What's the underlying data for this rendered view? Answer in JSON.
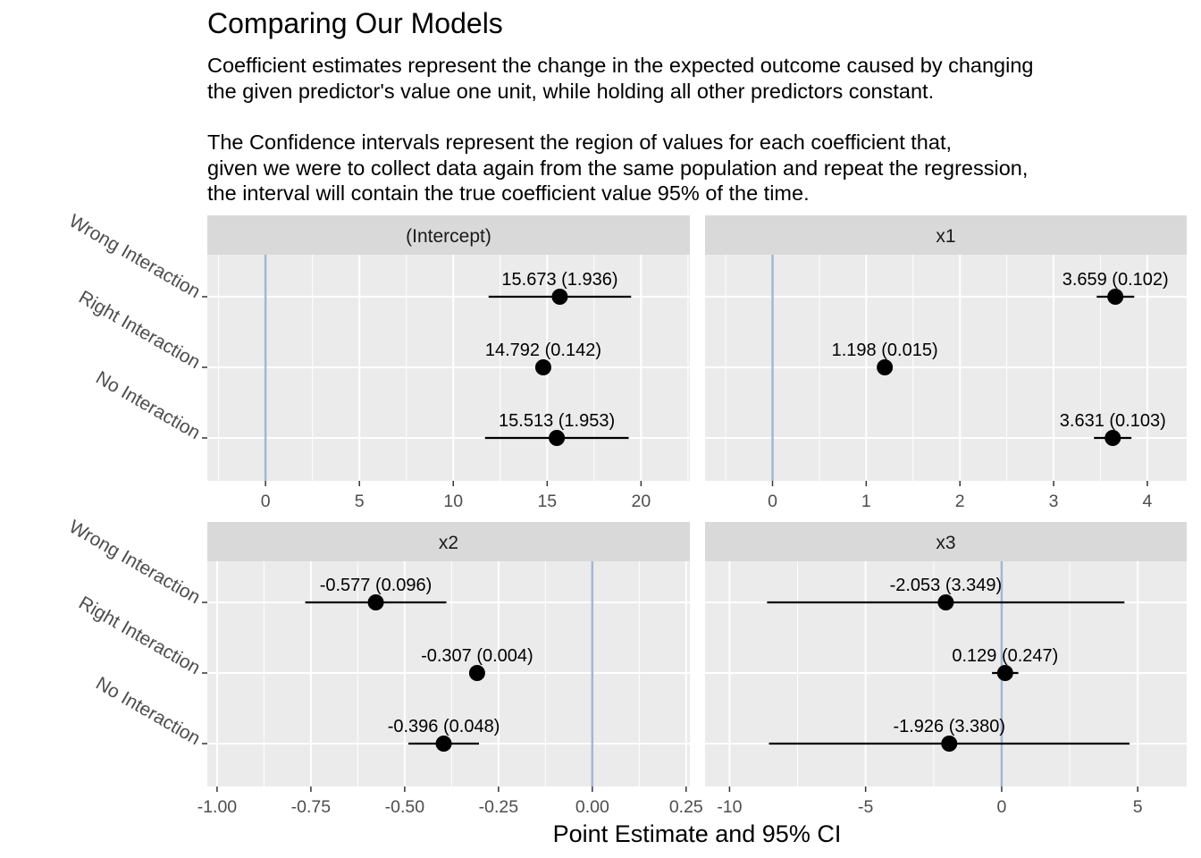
{
  "chart_data": {
    "type": "scatter",
    "title": "Comparing Our Models",
    "subtitle": [
      "Coefficient estimates represent the change in the expected outcome caused by changing",
      "the given predictor's value one unit, while holding all other predictors constant.",
      "The Confidence intervals represent the region of values for each coefficient that,",
      "given we were to collect data again from the same population and repeat the regression,",
      "the interval will contain the true coefficient value 95% of the time."
    ],
    "xlabel": "Point Estimate and 95% CI",
    "ylabel": "",
    "categories": [
      "Wrong Interaction",
      "Right Interaction",
      "No Interaction"
    ],
    "reference_line": 0,
    "reference_color": "#a2b7d6",
    "grid": true,
    "panels": [
      {
        "facet": "(Intercept)",
        "xlim": [
          -3.1,
          22.6
        ],
        "ticks": [
          0,
          5,
          10,
          15,
          20
        ],
        "tick_labels": [
          "0",
          "5",
          "10",
          "15",
          "20"
        ],
        "points": [
          {
            "model": "Wrong Interaction",
            "estimate": 15.673,
            "lower": 11.88,
            "upper": 19.47,
            "label": "15.673 (1.936)"
          },
          {
            "model": "Right Interaction",
            "estimate": 14.792,
            "lower": 14.51,
            "upper": 15.07,
            "label": "14.792 (0.142)"
          },
          {
            "model": "No Interaction",
            "estimate": 15.513,
            "lower": 11.69,
            "upper": 19.34,
            "label": "15.513 (1.953)"
          }
        ]
      },
      {
        "facet": "x1",
        "xlim": [
          -0.72,
          4.42
        ],
        "ticks": [
          0,
          1,
          2,
          3,
          4
        ],
        "tick_labels": [
          "0",
          "1",
          "2",
          "3",
          "4"
        ],
        "points": [
          {
            "model": "Wrong Interaction",
            "estimate": 3.659,
            "lower": 3.46,
            "upper": 3.86,
            "label": "3.659 (0.102)"
          },
          {
            "model": "Right Interaction",
            "estimate": 1.198,
            "lower": 1.169,
            "upper": 1.227,
            "label": "1.198 (0.015)"
          },
          {
            "model": "No Interaction",
            "estimate": 3.631,
            "lower": 3.43,
            "upper": 3.83,
            "label": "3.631 (0.103)"
          }
        ]
      },
      {
        "facet": "x2",
        "xlim": [
          -1.026,
          0.26
        ],
        "ticks": [
          -1.0,
          -0.75,
          -0.5,
          -0.25,
          0.0,
          0.25
        ],
        "tick_labels": [
          "-1.00",
          "-0.75",
          "-0.50",
          "-0.25",
          "0.00",
          "0.25"
        ],
        "points": [
          {
            "model": "Wrong Interaction",
            "estimate": -0.577,
            "lower": -0.765,
            "upper": -0.389,
            "label": "-0.577 (0.096)"
          },
          {
            "model": "Right Interaction",
            "estimate": -0.307,
            "lower": -0.315,
            "upper": -0.299,
            "label": "-0.307 (0.004)"
          },
          {
            "model": "No Interaction",
            "estimate": -0.396,
            "lower": -0.49,
            "upper": -0.302,
            "label": "-0.396 (0.048)"
          }
        ]
      },
      {
        "facet": "x3",
        "xlim": [
          -10.9,
          6.8
        ],
        "ticks": [
          -10,
          -5,
          0,
          5
        ],
        "tick_labels": [
          "-10",
          "-5",
          "0",
          "5"
        ],
        "points": [
          {
            "model": "Wrong Interaction",
            "estimate": -2.053,
            "lower": -8.62,
            "upper": 4.51,
            "label": "-2.053 (3.349)"
          },
          {
            "model": "Right Interaction",
            "estimate": 0.129,
            "lower": -0.355,
            "upper": 0.613,
            "label": "0.129 (0.247)"
          },
          {
            "model": "No Interaction",
            "estimate": -1.926,
            "lower": -8.55,
            "upper": 4.7,
            "label": "-1.926 (3.380)"
          }
        ]
      }
    ]
  }
}
